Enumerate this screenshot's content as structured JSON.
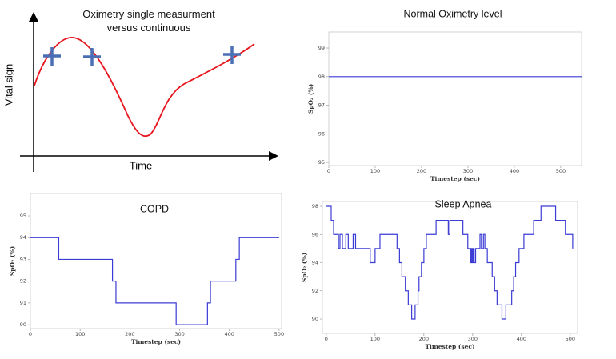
{
  "chart_data": [
    {
      "type": "schematic",
      "title": "Oximetry single measurment versus continuous",
      "xlabel": "Time",
      "ylabel": "Vital sign"
    },
    {
      "type": "line",
      "title": "Normal Oximetry level",
      "xlabel": "Timestep (sec)",
      "ylabel": "SpO₂ (%)",
      "xlim": [
        0,
        545
      ],
      "ylim": [
        94.89,
        99.56
      ],
      "xticks": [
        0,
        100,
        200,
        300,
        400,
        500
      ],
      "yticks": [
        95,
        96,
        97,
        98,
        99
      ],
      "series": [
        {
          "color": "#3b3bd6",
          "x": [
            0,
            545
          ],
          "values": [
            98,
            98
          ]
        }
      ]
    },
    {
      "type": "line",
      "title": "COPD",
      "xlabel": "Timestep (sec)",
      "ylabel": "SpO₂ (%)",
      "xlim": [
        0,
        505
      ],
      "ylim": [
        89.82,
        96.03
      ],
      "xticks": [
        0,
        100,
        200,
        300,
        400,
        500
      ],
      "yticks": [
        90,
        91,
        92,
        93,
        94,
        95
      ],
      "series": [
        {
          "color": "#3b3bd6",
          "x": [
            0,
            57,
            57,
            165,
            165,
            172,
            172,
            293,
            293,
            356,
            356,
            362,
            362,
            413,
            413,
            420,
            420,
            500
          ],
          "values": [
            94,
            94,
            93,
            93,
            92,
            92,
            91,
            91,
            90,
            90,
            91,
            91,
            92,
            92,
            93,
            93,
            94,
            94
          ]
        }
      ]
    },
    {
      "type": "line",
      "title": "Sleep Apnea",
      "xlabel": "Timestep (sec)",
      "ylabel": "SpO₂ (%)",
      "xlim": [
        -8,
        515
      ],
      "ylim": [
        88.98,
        98.34
      ],
      "xticks": [
        0,
        100,
        200,
        300,
        400,
        500
      ],
      "yticks": [
        90,
        92,
        94,
        96,
        98
      ],
      "series": [
        {
          "color": "#3b3bd6",
          "x": [
            0,
            10,
            10,
            15,
            15,
            25,
            25,
            28,
            28,
            33,
            33,
            40,
            40,
            45,
            45,
            55,
            55,
            60,
            60,
            90,
            90,
            100,
            100,
            110,
            110,
            145,
            145,
            150,
            150,
            155,
            155,
            162,
            162,
            168,
            168,
            175,
            175,
            182,
            182,
            188,
            188,
            190,
            190,
            195,
            195,
            200,
            200,
            205,
            205,
            225,
            225,
            250,
            250,
            253,
            253,
            280,
            280,
            290,
            290,
            295,
            295,
            297,
            297,
            299,
            299,
            301,
            301,
            303,
            303,
            306,
            306,
            315,
            315,
            318,
            318,
            322,
            322,
            325,
            325,
            330,
            330,
            340,
            340,
            345,
            345,
            350,
            350,
            360,
            360,
            368,
            368,
            380,
            380,
            384,
            384,
            388,
            388,
            395,
            395,
            405,
            405,
            425,
            425,
            440,
            440,
            470,
            470,
            490,
            490,
            505,
            505
          ],
          "values": [
            98,
            98,
            97,
            97,
            96,
            96,
            95,
            95,
            96,
            96,
            95,
            95,
            96,
            96,
            95,
            95,
            96,
            96,
            95,
            95,
            94,
            94,
            95,
            95,
            96,
            96,
            95,
            95,
            94,
            94,
            93,
            93,
            92,
            92,
            91,
            91,
            90,
            90,
            91,
            91,
            92,
            92,
            93,
            93,
            94,
            94,
            95,
            95,
            96,
            96,
            97,
            97,
            96,
            96,
            97,
            97,
            96,
            96,
            95,
            95,
            94,
            94,
            95,
            95,
            94,
            94,
            95,
            95,
            94,
            94,
            95,
            95,
            96,
            96,
            95,
            95,
            96,
            96,
            95,
            95,
            94,
            94,
            93,
            93,
            92,
            92,
            91,
            91,
            90,
            90,
            91,
            91,
            92,
            92,
            93,
            93,
            94,
            94,
            95,
            95,
            96,
            96,
            97,
            97,
            98,
            98,
            97,
            97,
            96,
            96,
            95
          ]
        }
      ]
    }
  ]
}
